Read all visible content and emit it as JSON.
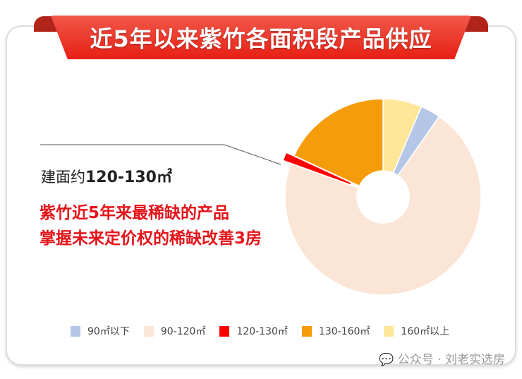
{
  "title": "近5年以来紫竹各面积段产品供应",
  "annotation": {
    "prefix": "建面约",
    "range": "120-130㎡",
    "line1": "紫竹近5年来最稀缺的产品",
    "line2": "掌握未来定价权的稀缺改善3房"
  },
  "watermark": "公众号 · 刘老实选房",
  "chart_data": {
    "type": "pie",
    "donut": true,
    "unit": "percent (estimated, unlabeled)",
    "legend_position": "bottom",
    "categories": [
      "90㎡以下",
      "90-120㎡",
      "120-130㎡",
      "130-160㎡",
      "160㎡以上"
    ],
    "values": [
      3.3,
      70.8,
      1.4,
      18.1,
      6.4
    ],
    "colors": [
      "#b4c7e7",
      "#fbe5d6",
      "#ff0000",
      "#f59c0b",
      "#ffe699"
    ],
    "exploded": [
      "120-130㎡"
    ],
    "drawing_order_clockwise_from_top": [
      "160㎡以上",
      "90㎡以下",
      "90-120㎡",
      "120-130㎡",
      "130-160㎡"
    ]
  }
}
